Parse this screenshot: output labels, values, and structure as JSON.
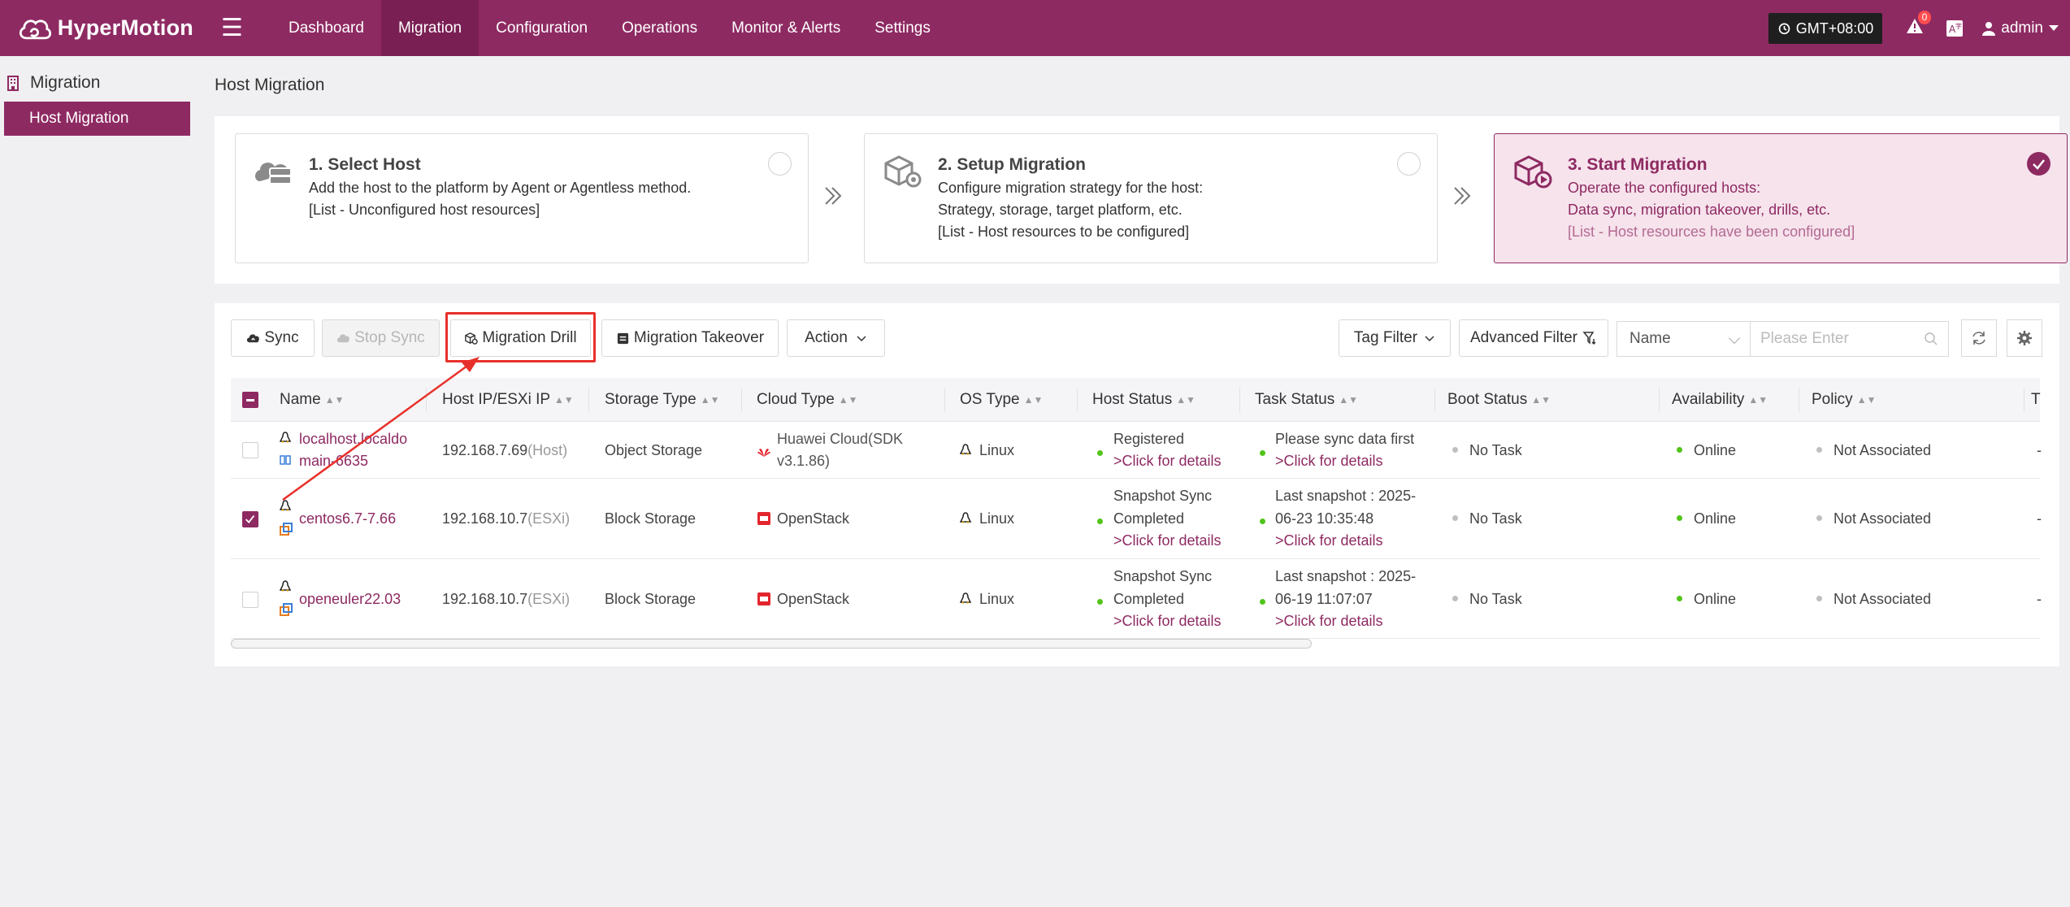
{
  "header": {
    "logo_text": "HyperMotion",
    "nav": [
      "Dashboard",
      "Migration",
      "Configuration",
      "Operations",
      "Monitor & Alerts",
      "Settings"
    ],
    "active_nav": "Migration",
    "timezone": "GMT+08:00",
    "alert_count": "0",
    "user": "admin"
  },
  "sidebar": {
    "title": "Migration",
    "items": [
      {
        "label": "Host Migration"
      }
    ]
  },
  "page_title": "Host Migration",
  "steps": [
    {
      "title": "1. Select Host",
      "lines": [
        "Add the host to the platform by Agent or Agentless method.",
        "[List - Unconfigured host resources]"
      ]
    },
    {
      "title": "2. Setup Migration",
      "lines": [
        "Configure migration strategy for the host:",
        "Strategy, storage, target platform, etc.",
        "[List - Host resources to be configured]"
      ]
    },
    {
      "title": "3. Start Migration",
      "lines": [
        "Operate the configured hosts:",
        "Data sync, migration takeover, drills, etc.",
        "[List - Host resources have been configured]"
      ]
    }
  ],
  "toolbar": {
    "sync": "Sync",
    "stop_sync": "Stop Sync",
    "migration_drill": "Migration Drill",
    "migration_takeover": "Migration Takeover",
    "action": "Action",
    "tag_filter": "Tag Filter",
    "advanced_filter": "Advanced Filter",
    "search_field": "Name",
    "search_placeholder": "Please Enter"
  },
  "table": {
    "columns": [
      "Name",
      "Host IP/ESXi IP",
      "Storage Type",
      "Cloud Type",
      "OS Type",
      "Host Status",
      "Task Status",
      "Boot Status",
      "Availability",
      "Policy",
      "T"
    ],
    "rows": [
      {
        "name": [
          "localhost.localdo",
          "main-6635"
        ],
        "ip": "192.168.7.69",
        "ip_type": "(Host)",
        "storage": "Object Storage",
        "cloud": [
          "Huawei Cloud(SDK",
          "v3.1.86)"
        ],
        "os": "Linux",
        "host_status": [
          "Registered"
        ],
        "host_status_link": ">Click for details",
        "task_status": [
          "Please sync data first"
        ],
        "task_status_link": ">Click for details",
        "boot": "No Task",
        "availability": "Online",
        "policy": "Not Associated",
        "last": "-"
      },
      {
        "name": [
          "centos6.7-7.66"
        ],
        "ip": "192.168.10.7",
        "ip_type": "(ESXi)",
        "storage": "Block Storage",
        "cloud": [
          "OpenStack"
        ],
        "os": "Linux",
        "host_status": [
          "Snapshot Sync",
          "Completed"
        ],
        "host_status_link": ">Click for details",
        "task_status": [
          "Last snapshot : 2025-",
          "06-23 10:35:48"
        ],
        "task_status_link": ">Click for details",
        "boot": "No Task",
        "availability": "Online",
        "policy": "Not Associated",
        "last": "-"
      },
      {
        "name": [
          "openeuler22.03"
        ],
        "ip": "192.168.10.7",
        "ip_type": "(ESXi)",
        "storage": "Block Storage",
        "cloud": [
          "OpenStack"
        ],
        "os": "Linux",
        "host_status": [
          "Snapshot Sync",
          "Completed"
        ],
        "host_status_link": ">Click for details",
        "task_status": [
          "Last snapshot : 2025-",
          "06-19 11:07:07"
        ],
        "task_status_link": ">Click for details",
        "boot": "No Task",
        "availability": "Online",
        "policy": "Not Associated",
        "last": "-"
      }
    ]
  },
  "colors": {
    "brand": "#8e2a62",
    "online": "#52c41a",
    "highlight": "#e8302a"
  }
}
